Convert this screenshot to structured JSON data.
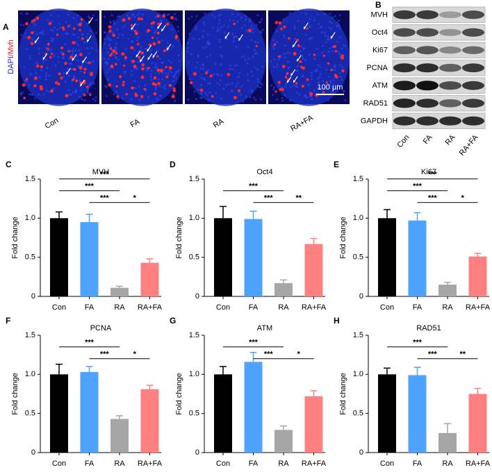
{
  "panel_a": {
    "letter": "A",
    "ylabel_parts": [
      "DAPI",
      "/Mvh"
    ],
    "groups": [
      "Con",
      "FA",
      "RA",
      "RA+FA"
    ],
    "scale_bar": "100 µm"
  },
  "panel_b": {
    "letter": "B",
    "proteins": [
      "MVH",
      "Oct4",
      "Ki67",
      "PCNA",
      "ATM",
      "RAD51",
      "GAPDH"
    ],
    "groups": [
      "Con",
      "FA",
      "RA",
      "RA+FA"
    ]
  },
  "chart_data": [
    {
      "type": "bar",
      "letter": "C",
      "title": "MVH",
      "ylabel": "Fold change",
      "categories": [
        "Con",
        "FA",
        "RA",
        "RA+FA"
      ],
      "values": [
        1.0,
        0.95,
        0.11,
        0.43
      ],
      "errors": [
        0.08,
        0.1,
        0.02,
        0.05
      ],
      "colors": [
        "#000000",
        "#4da3ff",
        "#a6a6a6",
        "#ff8080"
      ],
      "ylim": [
        0,
        1.5
      ],
      "yticks": [
        0,
        0.5,
        {
          "value": 1,
          "label": "1.0"
        },
        1.5
      ],
      "comparisons": [
        {
          "from": 0,
          "to": 3,
          "label": "***"
        },
        {
          "from": 0,
          "to": 2,
          "label": "***"
        },
        {
          "from": 1,
          "to": 2,
          "label": "***"
        },
        {
          "from": 2,
          "to": 3,
          "label": "*"
        }
      ]
    },
    {
      "type": "bar",
      "letter": "D",
      "title": "Oct4",
      "ylabel": "Fold change",
      "categories": [
        "Con",
        "FA",
        "RA",
        "RA+FA"
      ],
      "values": [
        1.0,
        0.99,
        0.17,
        0.67
      ],
      "errors": [
        0.15,
        0.1,
        0.04,
        0.07
      ],
      "colors": [
        "#000000",
        "#4da3ff",
        "#a6a6a6",
        "#ff8080"
      ],
      "ylim": [
        0,
        1.5
      ],
      "yticks": [
        0,
        0.5,
        {
          "value": 1,
          "label": "1.0"
        },
        1.5
      ],
      "comparisons": [
        {
          "from": 0,
          "to": 2,
          "label": "***"
        },
        {
          "from": 1,
          "to": 2,
          "label": "***"
        },
        {
          "from": 2,
          "to": 3,
          "label": "**"
        }
      ]
    },
    {
      "type": "bar",
      "letter": "E",
      "title": "Ki67",
      "ylabel": "Fold change",
      "categories": [
        "Con",
        "FA",
        "RA",
        "RA+FA"
      ],
      "values": [
        1.0,
        0.97,
        0.15,
        0.51
      ],
      "errors": [
        0.11,
        0.1,
        0.03,
        0.04
      ],
      "colors": [
        "#000000",
        "#4da3ff",
        "#a6a6a6",
        "#ff8080"
      ],
      "ylim": [
        0,
        1.5
      ],
      "yticks": [
        0,
        0.5,
        {
          "value": 1,
          "label": "1.0"
        },
        1.5
      ],
      "comparisons": [
        {
          "from": 0,
          "to": 3,
          "label": "***"
        },
        {
          "from": 0,
          "to": 2,
          "label": "***"
        },
        {
          "from": 1,
          "to": 2,
          "label": "***"
        },
        {
          "from": 2,
          "to": 3,
          "label": "*"
        }
      ]
    },
    {
      "type": "bar",
      "letter": "F",
      "title": "PCNA",
      "ylabel": "Fold change",
      "categories": [
        "Con",
        "FA",
        "RA",
        "RA+FA"
      ],
      "values": [
        1.0,
        1.03,
        0.43,
        0.81
      ],
      "errors": [
        0.13,
        0.07,
        0.04,
        0.05
      ],
      "colors": [
        "#000000",
        "#4da3ff",
        "#a6a6a6",
        "#ff8080"
      ],
      "ylim": [
        0,
        1.5
      ],
      "yticks": [
        0,
        0.5,
        {
          "value": 1,
          "label": "1.0"
        },
        1.5
      ],
      "comparisons": [
        {
          "from": 0,
          "to": 2,
          "label": "***"
        },
        {
          "from": 1,
          "to": 2,
          "label": "***"
        },
        {
          "from": 2,
          "to": 3,
          "label": "*"
        }
      ]
    },
    {
      "type": "bar",
      "letter": "G",
      "title": "ATM",
      "ylabel": "Fold change",
      "categories": [
        "Con",
        "FA",
        "RA",
        "RA+FA"
      ],
      "values": [
        1.0,
        1.16,
        0.29,
        0.72
      ],
      "errors": [
        0.1,
        0.12,
        0.05,
        0.07
      ],
      "colors": [
        "#000000",
        "#4da3ff",
        "#a6a6a6",
        "#ff8080"
      ],
      "ylim": [
        0,
        1.5
      ],
      "yticks": [
        0,
        0.5,
        {
          "value": 1,
          "label": "1.0"
        },
        1.5
      ],
      "comparisons": [
        {
          "from": 0,
          "to": 2,
          "label": "***"
        },
        {
          "from": 1,
          "to": 2,
          "label": "***"
        },
        {
          "from": 2,
          "to": 3,
          "label": "*"
        }
      ]
    },
    {
      "type": "bar",
      "letter": "H",
      "title": "RAD51",
      "ylabel": "Fold change",
      "categories": [
        "Con",
        "FA",
        "RA",
        "RA+FA"
      ],
      "values": [
        1.0,
        0.99,
        0.25,
        0.75
      ],
      "errors": [
        0.08,
        0.1,
        0.12,
        0.07
      ],
      "colors": [
        "#000000",
        "#4da3ff",
        "#a6a6a6",
        "#ff8080"
      ],
      "ylim": [
        0,
        1.5
      ],
      "yticks": [
        0,
        0.5,
        {
          "value": 1,
          "label": "1.0"
        },
        1.5
      ],
      "comparisons": [
        {
          "from": 0,
          "to": 2,
          "label": "***"
        },
        {
          "from": 1,
          "to": 2,
          "label": "***"
        },
        {
          "from": 2,
          "to": 3,
          "label": "**"
        }
      ]
    }
  ]
}
